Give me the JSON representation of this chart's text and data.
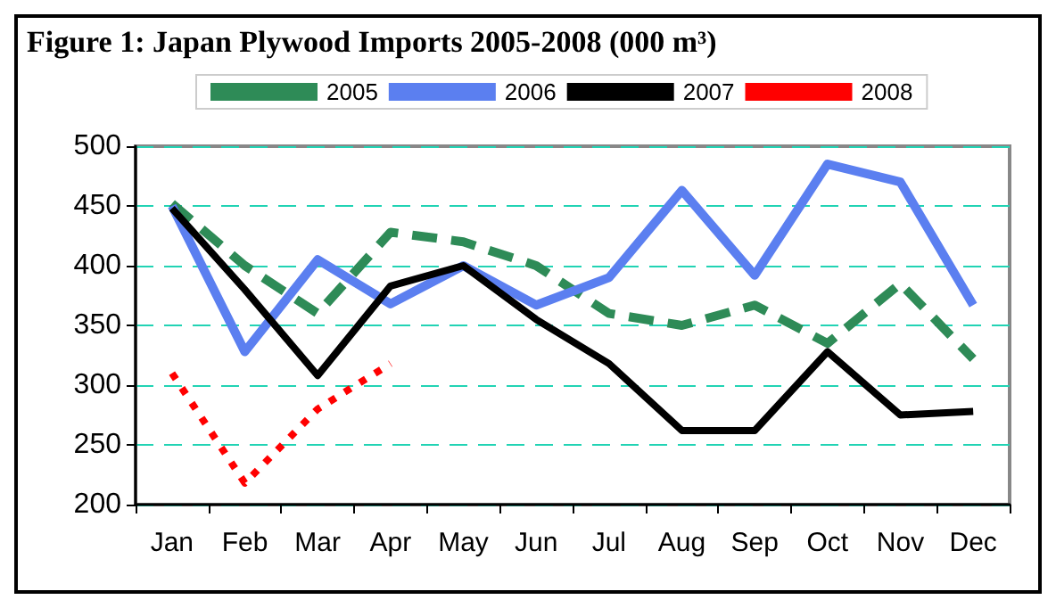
{
  "chart_data": {
    "type": "line",
    "title": "Figure 1: Japan Plywood Imports 2005-2008 (000 m³)",
    "categories": [
      "Jan",
      "Feb",
      "Mar",
      "Apr",
      "May",
      "Jun",
      "Jul",
      "Aug",
      "Sep",
      "Oct",
      "Nov",
      "Dec"
    ],
    "series": [
      {
        "name": "2005",
        "color": "#2e8b57",
        "line_style": "dashed",
        "values": [
          452,
          400,
          360,
          428,
          420,
          400,
          360,
          350,
          367,
          335,
          385,
          322
        ]
      },
      {
        "name": "2006",
        "color": "#5b7ff0",
        "line_style": "solid",
        "values": [
          450,
          328,
          405,
          368,
          400,
          367,
          390,
          463,
          392,
          485,
          470,
          367
        ]
      },
      {
        "name": "2007",
        "color": "#000000",
        "line_style": "solid",
        "values": [
          448,
          380,
          308,
          383,
          400,
          355,
          318,
          262,
          262,
          328,
          275,
          278
        ]
      },
      {
        "name": "2008",
        "color": "#ff0000",
        "line_style": "dotted",
        "values": [
          310,
          218,
          280,
          318,
          null,
          null,
          null,
          null,
          null,
          null,
          null,
          null
        ]
      }
    ],
    "ylim": [
      200,
      500
    ],
    "yticks": [
      200,
      250,
      300,
      350,
      400,
      450,
      500
    ],
    "grid": "y",
    "legend": "top",
    "marker": "none"
  }
}
